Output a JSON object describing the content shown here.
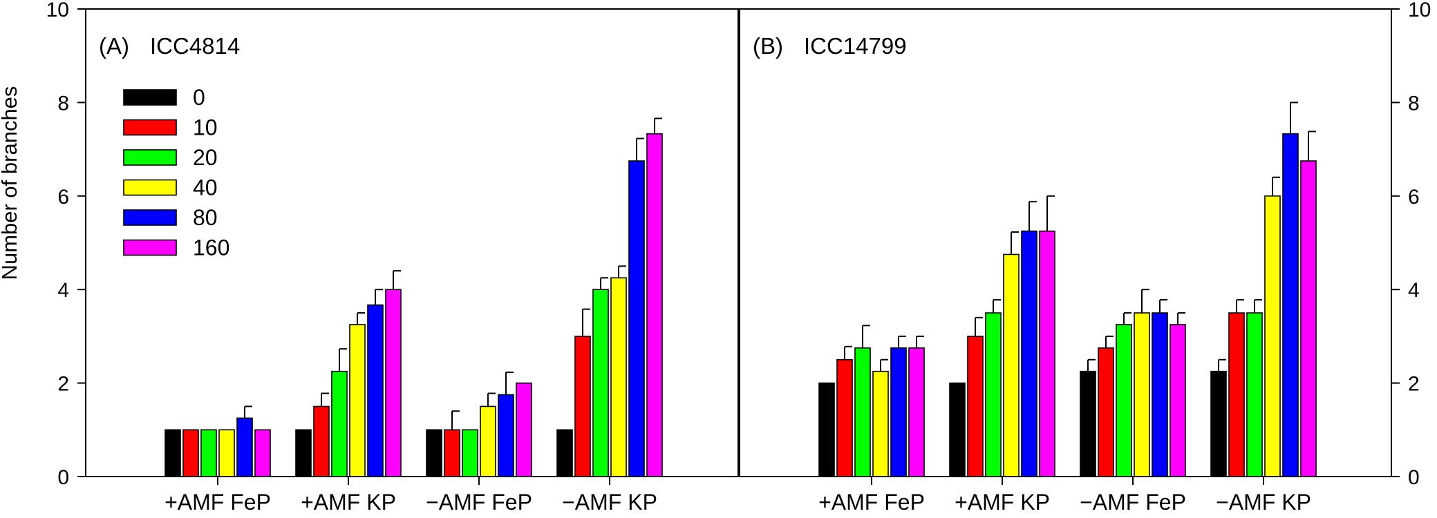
{
  "chart_data": {
    "type": "bar",
    "ylabel": "Number of branches",
    "ylim": [
      0,
      10
    ],
    "yticks": [
      "0",
      "2",
      "4",
      "6",
      "8",
      "10"
    ],
    "grid": false,
    "legend": {
      "placement": "top-left of panel A",
      "entries": [
        "0",
        "10",
        "20",
        "40",
        "80",
        "160"
      ],
      "colors": [
        "#000000",
        "#ff0000",
        "#00ff00",
        "#ffff00",
        "#0000ff",
        "#ff00ff"
      ]
    },
    "categories": [
      "+AMF FeP",
      "+AMF KP",
      "−AMF FeP",
      "−AMF KP"
    ],
    "panels": [
      {
        "label": "(A)",
        "title": "ICC4814",
        "series": [
          {
            "name": "0",
            "values": [
              1.0,
              1.0,
              1.0,
              1.0
            ],
            "errors": [
              0,
              0,
              0,
              0
            ]
          },
          {
            "name": "10",
            "values": [
              1.0,
              1.5,
              1.0,
              3.0
            ],
            "errors": [
              0,
              0.28,
              0.4,
              0.58
            ]
          },
          {
            "name": "20",
            "values": [
              1.0,
              2.25,
              1.0,
              4.0
            ],
            "errors": [
              0,
              0.48,
              0,
              0.25
            ]
          },
          {
            "name": "40",
            "values": [
              1.0,
              3.25,
              1.5,
              4.25
            ],
            "errors": [
              0,
              0.25,
              0.28,
              0.25
            ]
          },
          {
            "name": "80",
            "values": [
              1.25,
              3.67,
              1.75,
              6.75
            ],
            "errors": [
              0.25,
              0.33,
              0.48,
              0.48
            ]
          },
          {
            "name": "160",
            "values": [
              1.0,
              4.0,
              2.0,
              7.33
            ],
            "errors": [
              0,
              0.4,
              0,
              0.33
            ]
          }
        ]
      },
      {
        "label": "(B)",
        "title": "ICC14799",
        "series": [
          {
            "name": "0",
            "values": [
              2.0,
              2.0,
              2.25,
              2.25
            ],
            "errors": [
              0,
              0,
              0.25,
              0.25
            ]
          },
          {
            "name": "10",
            "values": [
              2.5,
              3.0,
              2.75,
              3.5
            ],
            "errors": [
              0.28,
              0.4,
              0.25,
              0.28
            ]
          },
          {
            "name": "20",
            "values": [
              2.75,
              3.5,
              3.25,
              3.5
            ],
            "errors": [
              0.48,
              0.28,
              0.25,
              0.28
            ]
          },
          {
            "name": "40",
            "values": [
              2.25,
              4.75,
              3.5,
              6.0
            ],
            "errors": [
              0.25,
              0.48,
              0.5,
              0.4
            ]
          },
          {
            "name": "80",
            "values": [
              2.75,
              5.25,
              3.5,
              7.33
            ],
            "errors": [
              0.25,
              0.63,
              0.28,
              0.67
            ]
          },
          {
            "name": "160",
            "values": [
              2.75,
              5.25,
              3.25,
              6.75
            ],
            "errors": [
              0.25,
              0.75,
              0.25,
              0.63
            ]
          }
        ]
      }
    ]
  }
}
